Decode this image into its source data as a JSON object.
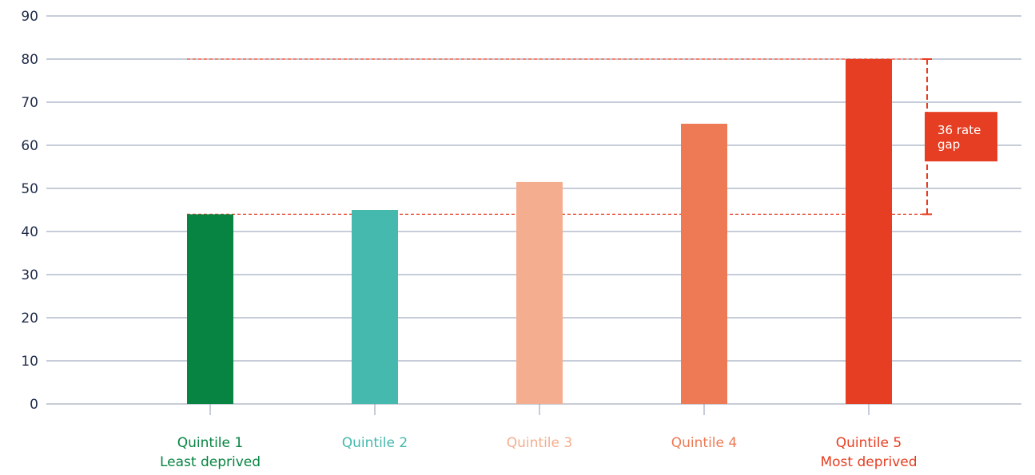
{
  "chart_data": {
    "type": "bar",
    "categories": [
      {
        "line1": "Quintile 1",
        "line2": "Least deprived"
      },
      {
        "line1": "Quintile 2",
        "line2": ""
      },
      {
        "line1": "Quintile 3",
        "line2": ""
      },
      {
        "line1": "Quintile 4",
        "line2": ""
      },
      {
        "line1": "Quintile 5",
        "line2": "Most deprived"
      }
    ],
    "values": [
      44,
      45,
      51.5,
      65,
      80
    ],
    "colors": [
      "#078442",
      "#45b9ad",
      "#f4ae8f",
      "#ed7a55",
      "#e63e22"
    ],
    "ylim": [
      0,
      90
    ],
    "yticks": [
      "0",
      "10",
      "20",
      "30",
      "40",
      "50",
      "60",
      "70",
      "80",
      "90"
    ],
    "annotation": {
      "line1": "36 rate",
      "line2": "gap",
      "color": "#e63e22"
    },
    "grid": true,
    "gridline_color": "#8e9ab2"
  }
}
